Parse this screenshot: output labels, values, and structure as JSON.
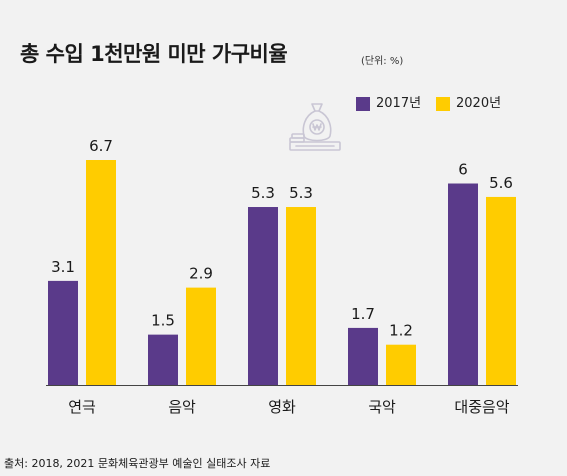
{
  "title": "총 수입 1천만원 미만 가구비율",
  "unit_label": "(단위: %)",
  "source": "출처: 2018, 2021 문화체육관광부 예술인 실태조사 자료",
  "icon": "money-bag-icon",
  "colors": {
    "series_2017": "#5a3a8a",
    "series_2020": "#ffcc00",
    "axis": "#444444",
    "icon": "#c9c6d4"
  },
  "chart_data": {
    "type": "bar",
    "title": "총 수입 1천만원 미만 가구비율",
    "unit": "(단위: %)",
    "categories": [
      "연극",
      "음악",
      "영화",
      "국악",
      "대중음악"
    ],
    "series": [
      {
        "name": "2017년",
        "values": [
          3.1,
          1.5,
          5.3,
          1.7,
          6
        ],
        "labels": [
          "3.1",
          "1.5",
          "5.3",
          "1.7",
          "6"
        ]
      },
      {
        "name": "2020년",
        "values": [
          6.7,
          2.9,
          5.3,
          1.2,
          5.6
        ],
        "labels": [
          "6.7",
          "2.9",
          "5.3",
          "1.2",
          "5.6"
        ]
      }
    ],
    "ylim": [
      0,
      6.7
    ],
    "grid": false,
    "legend": "top-right"
  }
}
